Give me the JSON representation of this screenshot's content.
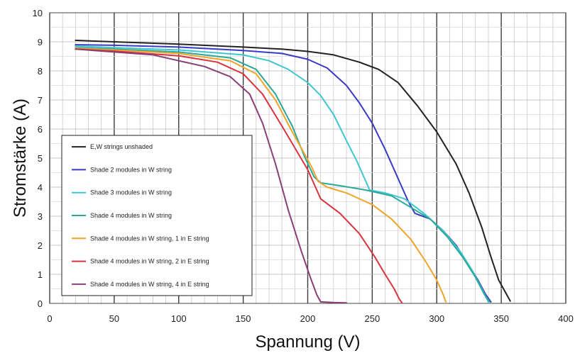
{
  "chart_data": {
    "type": "line",
    "xlabel": "Spannung (V)",
    "ylabel": "Stromstärke (A)",
    "xlim": [
      0,
      400
    ],
    "ylim": [
      0,
      10
    ],
    "x_ticks": [
      0,
      50,
      100,
      150,
      200,
      250,
      300,
      350,
      400
    ],
    "y_ticks": [
      0,
      1,
      2,
      3,
      4,
      5,
      6,
      7,
      8,
      9,
      10
    ],
    "grid": true,
    "legend_position": "lower-left",
    "series": [
      {
        "name": "E,W strings unshaded",
        "color": "#222222",
        "points": [
          [
            20,
            9.05
          ],
          [
            50,
            9.0
          ],
          [
            100,
            8.92
          ],
          [
            150,
            8.82
          ],
          [
            180,
            8.75
          ],
          [
            200,
            8.67
          ],
          [
            220,
            8.55
          ],
          [
            240,
            8.3
          ],
          [
            255,
            8.05
          ],
          [
            270,
            7.6
          ],
          [
            285,
            6.8
          ],
          [
            300,
            5.9
          ],
          [
            315,
            4.8
          ],
          [
            325,
            3.8
          ],
          [
            335,
            2.6
          ],
          [
            342,
            1.6
          ],
          [
            348,
            0.8
          ],
          [
            353,
            0.4
          ],
          [
            357,
            0.08
          ]
        ]
      },
      {
        "name": "Shade 2 modules in W string",
        "color": "#3a3ac8",
        "points": [
          [
            20,
            8.9
          ],
          [
            50,
            8.88
          ],
          [
            100,
            8.82
          ],
          [
            150,
            8.7
          ],
          [
            180,
            8.6
          ],
          [
            200,
            8.4
          ],
          [
            215,
            8.1
          ],
          [
            230,
            7.5
          ],
          [
            240,
            6.9
          ],
          [
            250,
            6.2
          ],
          [
            260,
            5.3
          ],
          [
            270,
            4.3
          ],
          [
            278,
            3.5
          ],
          [
            283,
            3.1
          ],
          [
            295,
            2.9
          ],
          [
            305,
            2.5
          ],
          [
            315,
            2.0
          ],
          [
            325,
            1.3
          ],
          [
            332,
            0.8
          ],
          [
            338,
            0.3
          ],
          [
            342,
            0.05
          ]
        ]
      },
      {
        "name": "Shade 3 modules in W string",
        "color": "#3fc6d0",
        "points": [
          [
            20,
            8.85
          ],
          [
            50,
            8.8
          ],
          [
            100,
            8.72
          ],
          [
            150,
            8.55
          ],
          [
            170,
            8.35
          ],
          [
            185,
            8.05
          ],
          [
            200,
            7.6
          ],
          [
            210,
            7.15
          ],
          [
            220,
            6.5
          ],
          [
            230,
            5.6
          ],
          [
            238,
            4.9
          ],
          [
            243,
            4.4
          ],
          [
            248,
            3.9
          ],
          [
            260,
            3.8
          ],
          [
            275,
            3.6
          ],
          [
            290,
            3.1
          ],
          [
            305,
            2.5
          ],
          [
            318,
            1.8
          ],
          [
            328,
            1.1
          ],
          [
            335,
            0.5
          ],
          [
            340,
            0.05
          ]
        ]
      },
      {
        "name": "Shade 4 modules in W string",
        "color": "#2aa898",
        "points": [
          [
            20,
            8.8
          ],
          [
            50,
            8.75
          ],
          [
            100,
            8.65
          ],
          [
            140,
            8.45
          ],
          [
            160,
            8.05
          ],
          [
            175,
            7.2
          ],
          [
            188,
            6.1
          ],
          [
            198,
            5.0
          ],
          [
            205,
            4.35
          ],
          [
            210,
            4.15
          ],
          [
            225,
            4.05
          ],
          [
            245,
            3.9
          ],
          [
            265,
            3.7
          ],
          [
            280,
            3.3
          ],
          [
            295,
            2.9
          ],
          [
            308,
            2.3
          ],
          [
            320,
            1.6
          ],
          [
            330,
            0.9
          ],
          [
            337,
            0.3
          ],
          [
            341,
            0.05
          ]
        ]
      },
      {
        "name": "Shade 4 modules in W string, 1 in E string",
        "color": "#f0a42a",
        "points": [
          [
            20,
            8.78
          ],
          [
            50,
            8.72
          ],
          [
            100,
            8.6
          ],
          [
            140,
            8.35
          ],
          [
            160,
            7.9
          ],
          [
            175,
            7.0
          ],
          [
            188,
            5.9
          ],
          [
            198,
            5.1
          ],
          [
            203,
            4.7
          ],
          [
            208,
            4.2
          ],
          [
            215,
            4.0
          ],
          [
            230,
            3.8
          ],
          [
            250,
            3.4
          ],
          [
            265,
            2.9
          ],
          [
            280,
            2.2
          ],
          [
            292,
            1.4
          ],
          [
            300,
            0.8
          ],
          [
            305,
            0.3
          ],
          [
            307,
            0.05
          ]
        ]
      },
      {
        "name": "Shade 4 modules in W string, 2 in E string",
        "color": "#d8343e",
        "points": [
          [
            20,
            8.75
          ],
          [
            50,
            8.68
          ],
          [
            100,
            8.52
          ],
          [
            130,
            8.3
          ],
          [
            150,
            7.9
          ],
          [
            165,
            7.2
          ],
          [
            180,
            6.1
          ],
          [
            192,
            5.2
          ],
          [
            200,
            4.6
          ],
          [
            210,
            3.6
          ],
          [
            225,
            3.1
          ],
          [
            240,
            2.4
          ],
          [
            252,
            1.6
          ],
          [
            260,
            1.0
          ],
          [
            267,
            0.5
          ],
          [
            271,
            0.15
          ],
          [
            273,
            0.02
          ]
        ]
      },
      {
        "name": "Shade 4 modules in W string, 4 in E string",
        "color": "#8a3f76",
        "points": [
          [
            20,
            8.75
          ],
          [
            50,
            8.65
          ],
          [
            80,
            8.55
          ],
          [
            100,
            8.35
          ],
          [
            120,
            8.15
          ],
          [
            140,
            7.8
          ],
          [
            155,
            7.2
          ],
          [
            165,
            6.2
          ],
          [
            175,
            4.8
          ],
          [
            185,
            3.2
          ],
          [
            195,
            1.8
          ],
          [
            202,
            0.9
          ],
          [
            207,
            0.3
          ],
          [
            210,
            0.05
          ],
          [
            220,
            0.03
          ],
          [
            230,
            0.02
          ]
        ]
      }
    ]
  }
}
